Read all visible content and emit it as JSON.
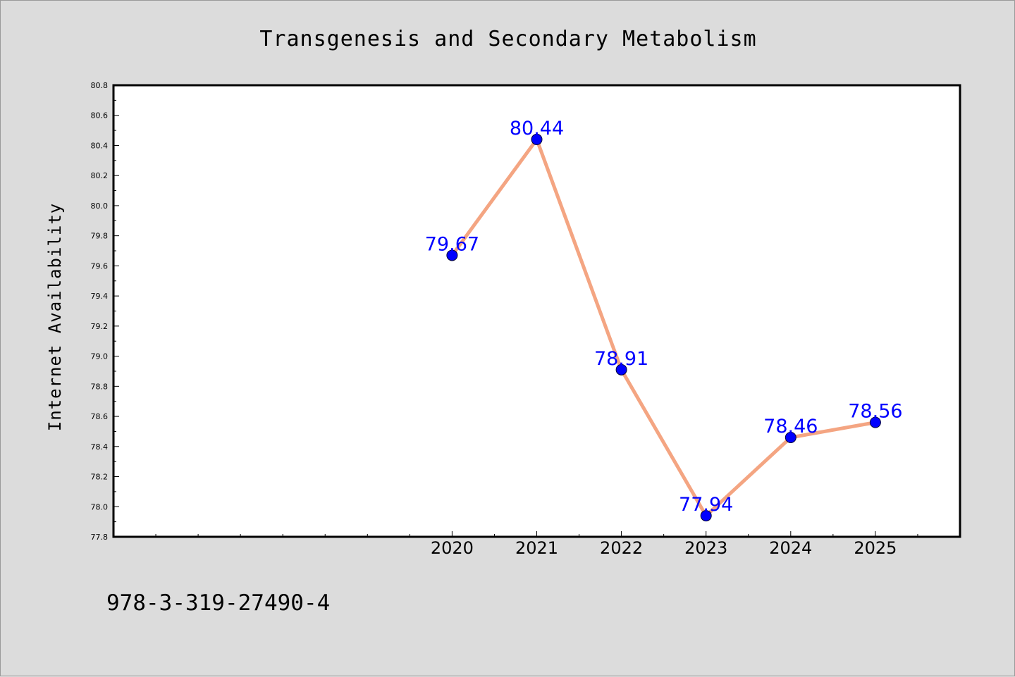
{
  "chart_data": {
    "type": "line",
    "title": "Transgenesis and Secondary Metabolism",
    "xlabel": "",
    "ylabel": "Internet Availability",
    "x": [
      2020,
      2021,
      2022,
      2023,
      2024,
      2025
    ],
    "x_tick_labels": [
      "2020",
      "2021",
      "2022",
      "2023",
      "2024",
      "2025"
    ],
    "xlim": [
      2016,
      2026
    ],
    "series": [
      {
        "values": [
          79.67,
          80.44,
          78.91,
          77.94,
          78.46,
          78.56
        ],
        "data_labels": [
          "79.67",
          "80.44",
          "78.91",
          "77.94",
          "78.46",
          "78.56"
        ],
        "line_color": "#f4a582",
        "marker_color": "#0000ff"
      }
    ],
    "ylim": [
      77.8,
      80.8
    ],
    "y_ticks": [
      77.8,
      78.0,
      78.2,
      78.4,
      78.6,
      78.8,
      79.0,
      79.2,
      79.4,
      79.6,
      79.8,
      80.0,
      80.2,
      80.4,
      80.6,
      80.8
    ],
    "y_tick_labels": [
      "77.8",
      "78.0",
      "78.2",
      "78.4",
      "78.6",
      "78.8",
      "79.0",
      "79.2",
      "79.4",
      "79.6",
      "79.8",
      "80.0",
      "80.2",
      "80.4",
      "80.6",
      "80.8"
    ],
    "grid": false,
    "legend": "none"
  },
  "footer": {
    "code": "978-3-319-27490-4"
  },
  "colors": {
    "background": "#dcdcdc",
    "plot_background": "#ffffff",
    "line": "#f4a582",
    "marker": "#0000ff",
    "data_label": "#0000ff"
  }
}
